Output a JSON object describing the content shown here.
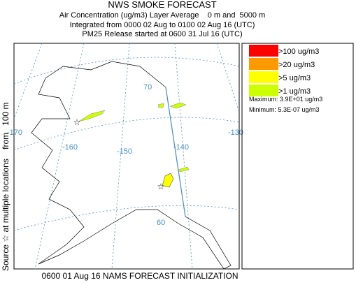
{
  "header": {
    "title": "NWS SMOKE FORECAST",
    "lines": [
      "Air Concentration (ug/m3) Layer Average    0 m and  5000 m",
      "Integrated from 0000 02 Aug to 0100 02 Aug 16 (UTC)",
      "PM25 Release started at 0600 31 Jul 16 (UTC)"
    ]
  },
  "side_label": "Source ☆ at multiple locations    from   100 m",
  "map": {
    "graticule_labels": [
      "70",
      "-170",
      "-160",
      "-150",
      "-140",
      "-130",
      "60"
    ]
  },
  "legend": {
    "items": [
      {
        "label": ">100 ug/m3",
        "color": "#ff0000"
      },
      {
        "label": ">20 ug/m3",
        "color": "#ff9900"
      },
      {
        "label": ">5 ug/m3",
        "color": "#ffff00"
      },
      {
        "label": ">1 ug/m3",
        "color": "#ccff00"
      }
    ],
    "maximum": "Maximum: 3.9E+01 ug/m3",
    "minimum": "Minimum: 5.3E-07 ug/m3"
  },
  "footer": "0600 01 Aug 16 NAMS FORECAST INITIALIZATION"
}
